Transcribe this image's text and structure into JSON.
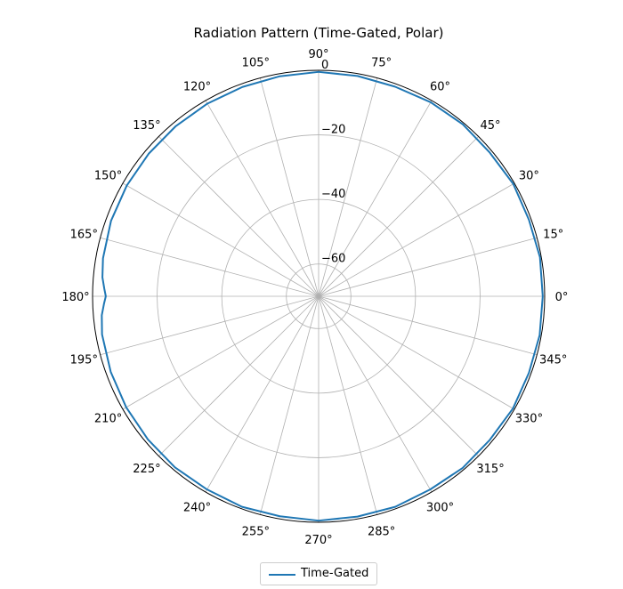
{
  "chart_data": {
    "type": "line",
    "projection": "polar",
    "title": "Radiation Pattern (Time-Gated, Polar)",
    "theta_tick_labels": [
      "0°",
      "15°",
      "30°",
      "45°",
      "60°",
      "75°",
      "90°",
      "105°",
      "120°",
      "135°",
      "150°",
      "165°",
      "180°",
      "195°",
      "210°",
      "225°",
      "240°",
      "255°",
      "270°",
      "285°",
      "300°",
      "315°",
      "330°",
      "345°"
    ],
    "r_ticks": [
      -60,
      -40,
      -20,
      0
    ],
    "r_tick_labels": [
      "−60",
      "−40",
      "−20",
      "0"
    ],
    "rlim": [
      -70,
      0
    ],
    "grid": true,
    "legend_position": "bottom-center",
    "series": [
      {
        "name": "Time-Gated",
        "color": "#1f77b4",
        "theta_deg": [
          0,
          10,
          20,
          30,
          40,
          50,
          60,
          70,
          80,
          90,
          100,
          110,
          120,
          130,
          140,
          150,
          160,
          170,
          175,
          178,
          180,
          182,
          185,
          190,
          200,
          210,
          220,
          230,
          240,
          250,
          260,
          270,
          280,
          290,
          300,
          310,
          320,
          330,
          340,
          350,
          360
        ],
        "r_db": [
          -0.6,
          -0.4,
          -0.7,
          -0.4,
          -0.8,
          -0.5,
          -0.6,
          -0.9,
          -0.7,
          -0.5,
          -0.8,
          -1.0,
          -1.1,
          -1.2,
          -1.3,
          -1.4,
          -1.6,
          -2.2,
          -2.8,
          -3.6,
          -4.1,
          -3.5,
          -2.6,
          -1.9,
          -1.5,
          -1.2,
          -1.0,
          -0.8,
          -0.9,
          -0.6,
          -0.8,
          -0.5,
          -0.7,
          -0.6,
          -0.9,
          -0.6,
          -0.8,
          -0.5,
          -0.7,
          -0.5,
          -0.6
        ]
      }
    ]
  },
  "legend": {
    "label": "Time-Gated"
  }
}
